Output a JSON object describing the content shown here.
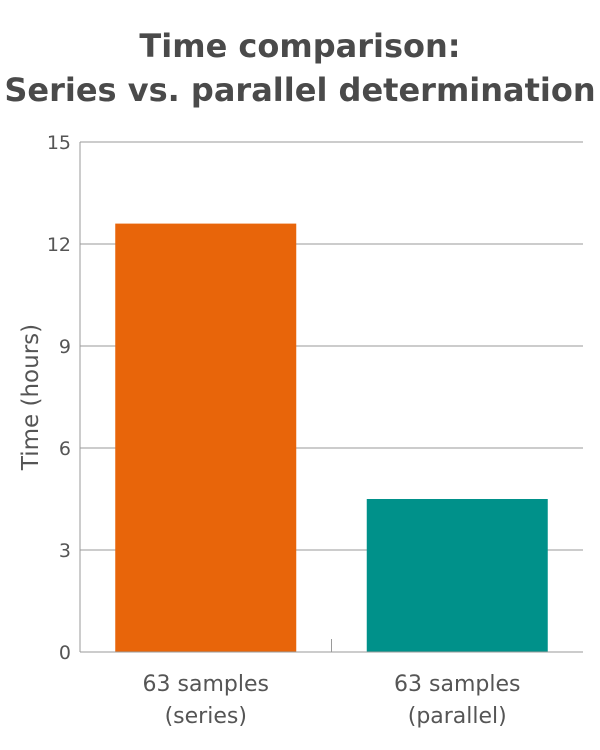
{
  "chart_data": {
    "type": "bar",
    "title": [
      "Time comparison:",
      "Series vs. parallel determination"
    ],
    "ylabel": "Time (hours)",
    "xlabel": "",
    "ylim": [
      0,
      15
    ],
    "yticks": [
      0,
      3,
      6,
      9,
      12,
      15
    ],
    "grid": true,
    "categories": [
      [
        "63 samples",
        "(series)"
      ],
      [
        "63 samples",
        "(parallel)"
      ]
    ],
    "values": [
      12.6,
      4.5
    ],
    "colors": [
      "#E8650A",
      "#00918A"
    ]
  }
}
